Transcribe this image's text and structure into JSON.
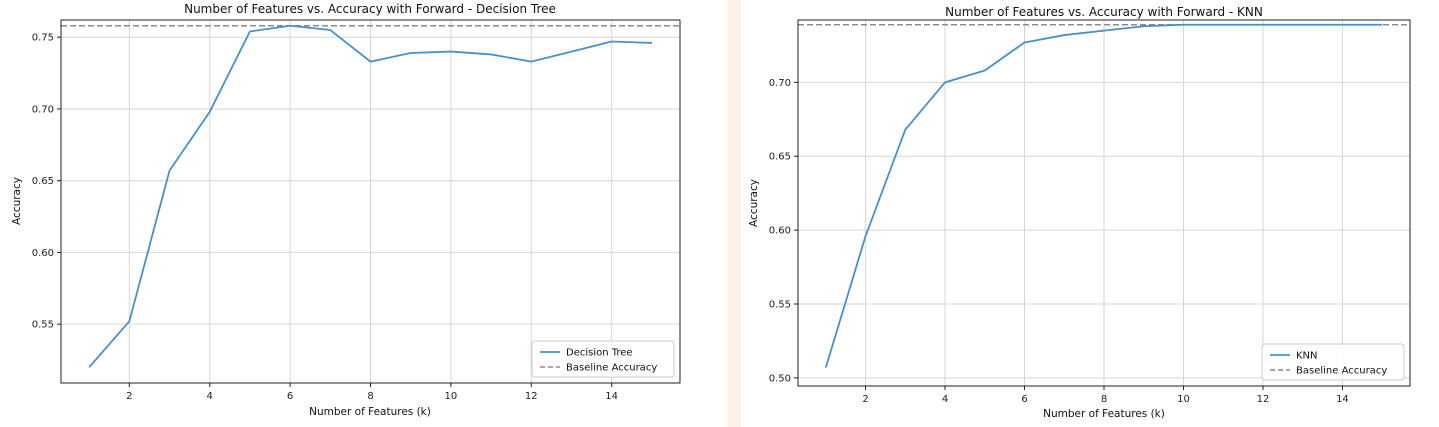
{
  "chart_data": [
    {
      "type": "line",
      "title": "Number of Features vs. Accuracy with Forward - Decision Tree",
      "xlabel": "Number of Features (k)",
      "ylabel": "Accuracy",
      "xlim": [
        0.3,
        15.7
      ],
      "ylim": [
        0.509,
        0.762
      ],
      "xticks": [
        2,
        4,
        6,
        8,
        10,
        12,
        14
      ],
      "yticks": [
        0.55,
        0.6,
        0.65,
        0.7,
        0.75
      ],
      "yticklabels": [
        "0.55",
        "0.60",
        "0.65",
        "0.70",
        "0.75"
      ],
      "grid": true,
      "legend_position": "lower-right",
      "x": [
        1,
        2,
        3,
        4,
        5,
        6,
        7,
        8,
        9,
        10,
        11,
        12,
        13,
        14,
        15
      ],
      "series": [
        {
          "name": "Decision Tree",
          "values": [
            0.52,
            0.552,
            0.657,
            0.698,
            0.754,
            0.758,
            0.755,
            0.733,
            0.739,
            0.74,
            0.738,
            0.733,
            0.74,
            0.747,
            0.746
          ],
          "color": "#4a90c4",
          "style": "solid"
        }
      ],
      "baseline": {
        "name": "Baseline Accuracy",
        "value": 0.758,
        "color": "#8c8c8c",
        "style": "dashed"
      }
    },
    {
      "type": "line",
      "title": "Number of Features vs. Accuracy with Forward - KNN",
      "xlabel": "Number of Features (k)",
      "ylabel": "Accuracy",
      "xlim": [
        0.3,
        15.7
      ],
      "ylim": [
        0.4945,
        0.7422
      ],
      "xticks": [
        2,
        4,
        6,
        8,
        10,
        12,
        14
      ],
      "yticks": [
        0.5,
        0.55,
        0.6,
        0.65,
        0.7
      ],
      "yticklabels": [
        "0.50",
        "0.55",
        "0.60",
        "0.65",
        "0.70"
      ],
      "grid": true,
      "legend_position": "lower-right",
      "x": [
        1,
        2,
        3,
        4,
        5,
        6,
        7,
        8,
        9,
        10,
        11,
        12,
        13,
        14,
        15
      ],
      "series": [
        {
          "name": "KNN",
          "values": [
            0.507,
            0.596,
            0.668,
            0.7,
            0.708,
            0.727,
            0.732,
            0.735,
            0.738,
            0.739,
            0.739,
            0.739,
            0.739,
            0.739,
            0.739
          ],
          "color": "#4a90c4",
          "style": "solid"
        }
      ],
      "baseline": {
        "name": "Baseline Accuracy",
        "value": 0.739,
        "color": "#8c8c8c",
        "style": "dashed"
      }
    }
  ]
}
